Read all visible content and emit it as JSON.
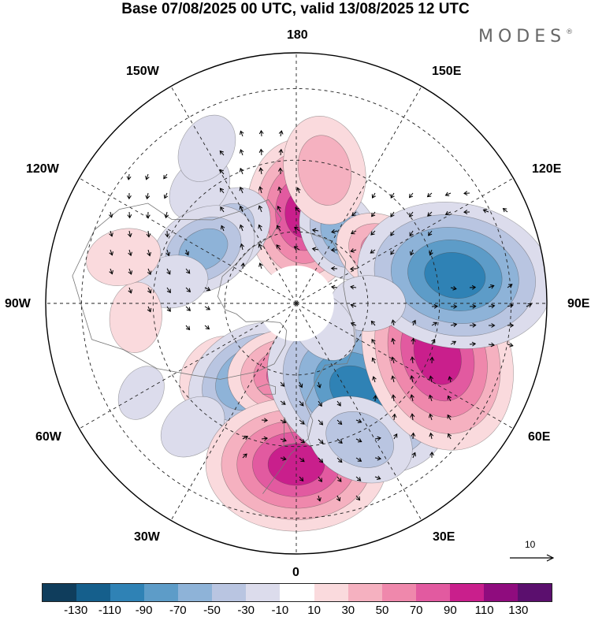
{
  "title": "Base 07/08/2025 00 UTC, valid 13/08/2025 12 UTC",
  "brand": "MODES",
  "brand_mark": "®",
  "longitude_labels": {
    "top": "180",
    "top_left": "150W",
    "top_right": "150E",
    "upper_left": "120W",
    "upper_right": "120E",
    "left": "90W",
    "right": "90E",
    "lower_left": "60W",
    "lower_right": "60E",
    "bottom_left": "30W",
    "bottom_right": "30E",
    "bottom": "0"
  },
  "vector_scale_label": "10",
  "colorbar": {
    "colors": [
      "#0f3d5c",
      "#155f8c",
      "#2f82b5",
      "#5d9cc8",
      "#8eb3d8",
      "#b9c5e1",
      "#dcdcec",
      "#ffffff",
      "#fadadd",
      "#f5b1c0",
      "#ef88ac",
      "#e25aa0",
      "#c91f8c",
      "#8f0c7e",
      "#5b0f6e"
    ],
    "tick_labels": [
      "-130",
      "-110",
      "-90",
      "-70",
      "-50",
      "-30",
      "-10",
      "10",
      "30",
      "50",
      "70",
      "90",
      "110",
      "130"
    ]
  },
  "anomaly_field": [
    {
      "lon": 176,
      "lat": 65,
      "value": 90,
      "size": 1.0
    },
    {
      "lon": 148,
      "lat": 67,
      "value": -50,
      "size": 1.0
    },
    {
      "lon": 120,
      "lat": 62,
      "value": 60,
      "size": 1.0
    },
    {
      "lon": 168,
      "lat": 52,
      "value": 30,
      "size": 1.5
    },
    {
      "lon": -135,
      "lat": 62,
      "value": -30,
      "size": 1.4
    },
    {
      "lon": -140,
      "lat": 48,
      "value": -20,
      "size": 1.5
    },
    {
      "lon": -150,
      "lat": 40,
      "value": -10,
      "size": 1.5
    },
    {
      "lon": -120,
      "lat": 60,
      "value": -60,
      "size": 1.1
    },
    {
      "lon": -100,
      "lat": 55,
      "value": -20,
      "size": 1.5
    },
    {
      "lon": -85,
      "lat": 45,
      "value": 20,
      "size": 1.5
    },
    {
      "lon": -105,
      "lat": 40,
      "value": 20,
      "size": 1.6
    },
    {
      "lon": -60,
      "lat": 40,
      "value": -25,
      "size": 1.2
    },
    {
      "lon": -50,
      "lat": 60,
      "value": 40,
      "size": 1.1
    },
    {
      "lon": -30,
      "lat": 66,
      "value": -70,
      "size": 1.1
    },
    {
      "lon": -40,
      "lat": 45,
      "value": -15,
      "size": 1.5
    },
    {
      "lon": -5,
      "lat": 70,
      "value": 75,
      "size": 1.0
    },
    {
      "lon": 0,
      "lat": 45,
      "value": 95,
      "size": 1.2
    },
    {
      "lon": 35,
      "lat": 60,
      "value": -100,
      "size": 1.3
    },
    {
      "lon": 25,
      "lat": 48,
      "value": -30,
      "size": 1.5
    },
    {
      "lon": 70,
      "lat": 48,
      "value": 100,
      "size": 1.3
    },
    {
      "lon": 100,
      "lat": 45,
      "value": -95,
      "size": 1.3
    },
    {
      "lon": 90,
      "lat": 70,
      "value": -10,
      "size": 1.6
    },
    {
      "lon": 50,
      "lat": 80,
      "value": -10,
      "size": 1.6
    }
  ]
}
